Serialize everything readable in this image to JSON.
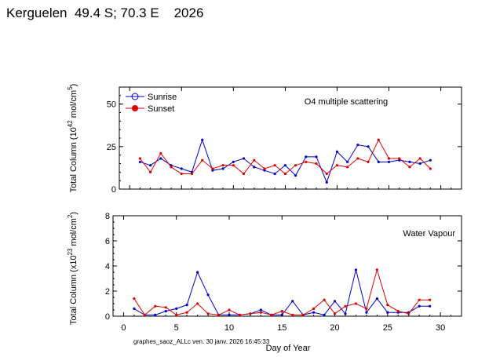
{
  "header": {
    "title": "Kerguelen  49.4 S; 70.3 E    2026"
  },
  "footer": {
    "stamp": "graphes_saoz_ALLc ven. 30 janv. 2026 16:45:33"
  },
  "colors": {
    "sunrise": "#0000cc",
    "sunset": "#dd0000",
    "axis": "#000000"
  },
  "chart_data": [
    {
      "type": "line",
      "title": "O4 multiple scattering",
      "xlabel": "",
      "ylabel_parts": [
        "Total Column (10",
        "42",
        " mol/cm",
        "5",
        ")"
      ],
      "xlim": [
        -1,
        32
      ],
      "ylim": [
        0,
        60
      ],
      "yticks": [
        0,
        25,
        50
      ],
      "xticks": [
        0,
        5,
        10,
        15,
        20,
        25,
        30
      ],
      "legend": {
        "position": "top-left",
        "entries": [
          "Sunrise",
          "Sunset"
        ]
      },
      "series": [
        {
          "name": "Sunrise",
          "x": [
            1,
            2,
            3,
            4,
            5,
            6,
            7,
            8,
            9,
            10,
            11,
            12,
            13,
            14,
            15,
            16,
            17,
            18,
            19,
            20,
            21,
            22,
            23,
            24,
            25,
            26,
            27,
            28,
            29
          ],
          "values": [
            16,
            14,
            18,
            14,
            12,
            10,
            29,
            11,
            12,
            16,
            18,
            13,
            11,
            9,
            14,
            8,
            19,
            19,
            4,
            22,
            16,
            26,
            25,
            16,
            16,
            17,
            16,
            15,
            17
          ]
        },
        {
          "name": "Sunset",
          "x": [
            1,
            2,
            3,
            4,
            5,
            6,
            7,
            8,
            9,
            10,
            11,
            12,
            13,
            14,
            15,
            16,
            17,
            18,
            19,
            20,
            21,
            22,
            23,
            24,
            25,
            26,
            27,
            28,
            29
          ],
          "values": [
            18,
            10,
            21,
            13,
            9,
            9,
            17,
            12,
            14,
            14,
            9,
            17,
            12,
            14,
            9,
            14,
            16,
            15,
            9,
            14,
            13,
            18,
            16,
            29,
            18,
            18,
            13,
            18,
            12
          ]
        }
      ]
    },
    {
      "type": "line",
      "title": "Water Vapour",
      "xlabel": "Day of Year",
      "ylabel_parts": [
        "Total Column (x10",
        "23",
        " mol/cm",
        "2",
        ")"
      ],
      "xlim": [
        -1,
        32
      ],
      "ylim": [
        0,
        8
      ],
      "yticks": [
        0,
        2,
        4,
        6,
        8
      ],
      "xticks": [
        0,
        5,
        10,
        15,
        20,
        25,
        30
      ],
      "series": [
        {
          "name": "Sunrise",
          "x": [
            1,
            2,
            3,
            4,
            5,
            6,
            7,
            8,
            9,
            10,
            11,
            12,
            13,
            14,
            15,
            16,
            17,
            18,
            19,
            20,
            21,
            22,
            23,
            24,
            25,
            26,
            27,
            28,
            29
          ],
          "values": [
            0.6,
            0.1,
            0.1,
            0.4,
            0.6,
            0.9,
            3.5,
            1.7,
            0.1,
            0.1,
            0.1,
            0.2,
            0.5,
            0.1,
            0.1,
            1.2,
            0.1,
            0.3,
            0.1,
            1.2,
            0.2,
            3.7,
            0.3,
            1.4,
            0.3,
            0.3,
            0.3,
            0.8,
            0.8
          ]
        },
        {
          "name": "Sunset",
          "x": [
            1,
            2,
            3,
            4,
            5,
            6,
            7,
            8,
            9,
            10,
            11,
            12,
            13,
            14,
            15,
            16,
            17,
            18,
            19,
            20,
            21,
            22,
            23,
            24,
            25,
            26,
            27,
            28,
            29
          ],
          "values": [
            1.4,
            0.1,
            0.8,
            0.7,
            0.1,
            0.3,
            1.0,
            0.2,
            0.1,
            0.5,
            0.1,
            0.2,
            0.3,
            0.1,
            0.4,
            0.1,
            0.1,
            0.6,
            1.3,
            0.2,
            0.8,
            1.0,
            0.6,
            3.7,
            0.9,
            0.4,
            0.2,
            1.3,
            1.3
          ]
        }
      ]
    }
  ]
}
